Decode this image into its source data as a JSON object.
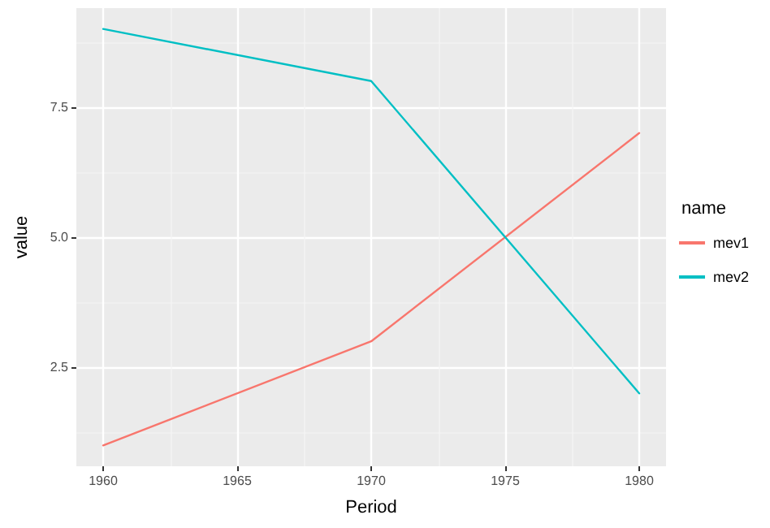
{
  "chart_data": {
    "type": "line",
    "xlabel": "Period",
    "ylabel": "value",
    "legend_title": "name",
    "x": [
      1960,
      1970,
      1980
    ],
    "series": [
      {
        "name": "mev1",
        "color": "#f8766d",
        "values": [
          1,
          3,
          7
        ]
      },
      {
        "name": "mev2",
        "color": "#00bfc4",
        "values": [
          9,
          8,
          2
        ]
      }
    ],
    "xlim": [
      1959,
      1981
    ],
    "xticks": [
      1960,
      1965,
      1970,
      1975,
      1980
    ],
    "ylim": [
      0.6,
      9.4
    ],
    "yticks": [
      2.5,
      {
        "value": 5,
        "label": "5.0"
      },
      7.5
    ],
    "grid": true,
    "legend": "right",
    "marker": "none",
    "line_style": "solid"
  }
}
